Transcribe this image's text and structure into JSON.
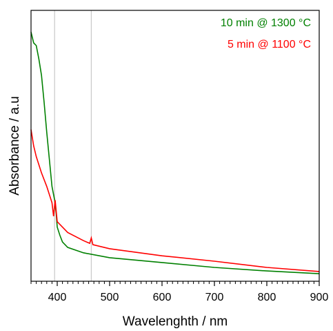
{
  "chart_data": {
    "type": "line",
    "xlabel": "Wavelenghth / nm",
    "ylabel": "Absorbance / a.u",
    "xlim": [
      350,
      900
    ],
    "ylim": [
      0,
      1
    ],
    "xticks": [
      400,
      500,
      600,
      700,
      800,
      900
    ],
    "vlines": [
      395,
      465
    ],
    "legend": "upper right",
    "series": [
      {
        "name": "10 min @ 1300 °C",
        "color": "#008000",
        "x": [
          350,
          355,
          360,
          365,
          370,
          375,
          380,
          385,
          390,
          395,
          398,
          400,
          405,
          410,
          420,
          450,
          500,
          600,
          700,
          800,
          900
        ],
        "values": [
          0.92,
          0.88,
          0.87,
          0.82,
          0.76,
          0.66,
          0.55,
          0.45,
          0.35,
          0.3,
          0.25,
          0.2,
          0.17,
          0.145,
          0.125,
          0.105,
          0.087,
          0.069,
          0.051,
          0.038,
          0.028
        ]
      },
      {
        "name": "5 min @ 1100 °C",
        "color": "#ff0000",
        "x": [
          350,
          355,
          360,
          370,
          380,
          390,
          393,
          396,
          400,
          420,
          450,
          462,
          465,
          468,
          500,
          600,
          700,
          800,
          900
        ],
        "values": [
          0.56,
          0.5,
          0.46,
          0.4,
          0.35,
          0.29,
          0.24,
          0.3,
          0.22,
          0.18,
          0.15,
          0.14,
          0.16,
          0.135,
          0.12,
          0.094,
          0.074,
          0.051,
          0.036
        ]
      }
    ]
  }
}
